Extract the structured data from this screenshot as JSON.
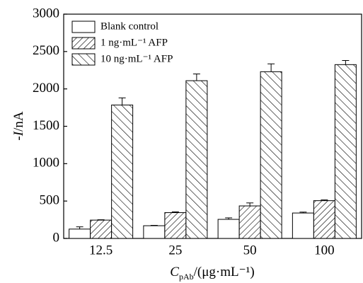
{
  "chart_data": {
    "type": "bar",
    "y_label": {
      "sign": "-",
      "symbol": "I",
      "unit": "/nA"
    },
    "x_label": {
      "symbol": "C",
      "subscript": "pAb",
      "unit": "/(μg·mL⁻¹)"
    },
    "categories": [
      "12.5",
      "25",
      "50",
      "100"
    ],
    "series": [
      {
        "name": "Blank control",
        "color": "#000000",
        "hatch": "none",
        "values": [
          125,
          170,
          255,
          340
        ],
        "errors": [
          30,
          5,
          20,
          12
        ]
      },
      {
        "name": "1 ng·mL⁻¹ AFP",
        "color": "#000000",
        "hatch": "/",
        "values": [
          245,
          345,
          435,
          505
        ],
        "errors": [
          5,
          10,
          40,
          10
        ]
      },
      {
        "name": "10 ng·mL⁻¹ AFP",
        "color": "#000000",
        "hatch": "\\",
        "values": [
          1785,
          2110,
          2230,
          2325
        ],
        "errors": [
          95,
          90,
          105,
          55
        ]
      }
    ],
    "ylim": [
      0,
      3000
    ],
    "yticks": [
      0,
      500,
      1000,
      1500,
      2000,
      2500,
      3000
    ],
    "legend": "upper-left",
    "grid": false
  }
}
